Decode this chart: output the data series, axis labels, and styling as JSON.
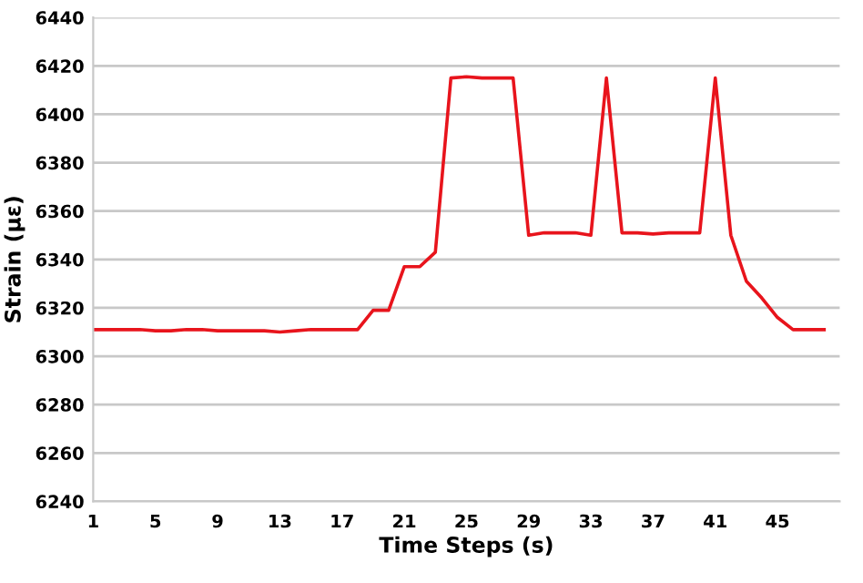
{
  "chart_data": {
    "type": "line",
    "xlabel": "Time Steps (s)",
    "ylabel": "Strain (με)",
    "categories": [
      "1",
      null,
      null,
      null,
      "5",
      null,
      null,
      null,
      "9",
      null,
      null,
      null,
      "13",
      null,
      null,
      null,
      "17",
      null,
      null,
      null,
      "21",
      null,
      null,
      null,
      "25",
      null,
      null,
      null,
      "29",
      null,
      null,
      null,
      "33",
      null,
      null,
      null,
      "37",
      null,
      null,
      null,
      "41",
      null,
      null,
      null,
      "45",
      null,
      null,
      null
    ],
    "series": [
      {
        "color": "#e8141c",
        "values": [
          6311,
          6311,
          6311,
          6311,
          6310.5,
          6310.5,
          6311,
          6311,
          6310.5,
          6310.5,
          6310.5,
          6310.5,
          6310,
          6310.5,
          6311,
          6311,
          6311,
          6311,
          6319,
          6319,
          6337,
          6337,
          6343,
          6415,
          6415.5,
          6415,
          6415,
          6415,
          6350,
          6351,
          6351,
          6351,
          6350,
          6415,
          6351,
          6351,
          6350.5,
          6351,
          6351,
          6351,
          6415,
          6350,
          6331,
          6324,
          6316,
          6311,
          6311,
          6311
        ]
      }
    ],
    "ylim": [
      6240,
      6440
    ],
    "yticks": [
      6240,
      6260,
      6280,
      6300,
      6320,
      6340,
      6360,
      6380,
      6400,
      6420,
      6440
    ],
    "grid": "y",
    "marker": "none",
    "line_style": "solid"
  }
}
